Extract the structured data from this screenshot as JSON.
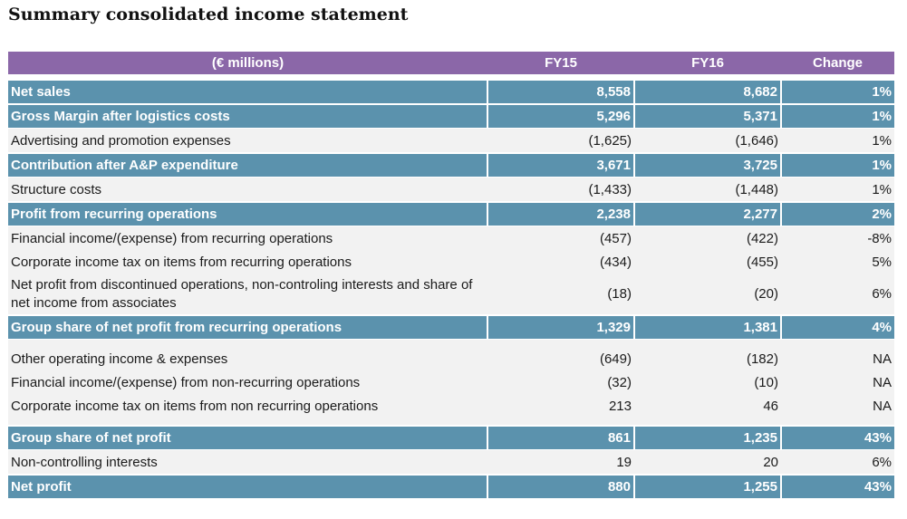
{
  "title": "Summary consolidated income statement",
  "table": {
    "headers": [
      "(€ millions)",
      "FY15",
      "FY16",
      "Change"
    ],
    "rows": [
      {
        "label": "Net sales",
        "fy15": "8,558",
        "fy16": "8,682",
        "change": "1%"
      },
      {
        "label": "Gross Margin after logistics costs",
        "fy15": "5,296",
        "fy16": "5,371",
        "change": "1%"
      },
      {
        "label": "Advertising and promotion expenses",
        "fy15": "(1,625)",
        "fy16": "(1,646)",
        "change": "1%"
      },
      {
        "label": "Contribution after A&P expenditure",
        "fy15": "3,671",
        "fy16": "3,725",
        "change": "1%"
      },
      {
        "label": "Structure costs",
        "fy15": "(1,433)",
        "fy16": "(1,448)",
        "change": "1%"
      },
      {
        "label": "Profit from recurring operations",
        "fy15": "2,238",
        "fy16": "2,277",
        "change": "2%"
      },
      {
        "label": "Financial income/(expense) from recurring operations",
        "fy15": "(457)",
        "fy16": "(422)",
        "change": "-8%"
      },
      {
        "label": "Corporate income tax on items from recurring operations",
        "fy15": "(434)",
        "fy16": "(455)",
        "change": "5%"
      },
      {
        "label": "Net profit from discontinued operations, non-controling interests and share of net income from associates",
        "fy15": "(18)",
        "fy16": "(20)",
        "change": "6%"
      },
      {
        "label": "Group share of net profit from recurring operations",
        "fy15": "1,329",
        "fy16": "1,381",
        "change": "4%"
      },
      {
        "label": "Other operating income & expenses",
        "fy15": "(649)",
        "fy16": "(182)",
        "change": "NA"
      },
      {
        "label": "Financial income/(expense) from non-recurring operations",
        "fy15": "(32)",
        "fy16": "(10)",
        "change": "NA"
      },
      {
        "label": "Corporate income tax on items from non recurring operations",
        "fy15": "213",
        "fy16": "46",
        "change": "NA"
      },
      {
        "label": "Group share of net profit",
        "fy15": "861",
        "fy16": "1,235",
        "change": "43%"
      },
      {
        "label": "Non-controlling interests",
        "fy15": "19",
        "fy16": "20",
        "change": "6%"
      },
      {
        "label": "Net profit",
        "fy15": "880",
        "fy16": "1,255",
        "change": "43%"
      }
    ]
  },
  "colors": {
    "header_bg": "#8b67a8",
    "highlight_row_bg": "#5b92ad",
    "plain_row_bg": "#f2f2f2"
  }
}
